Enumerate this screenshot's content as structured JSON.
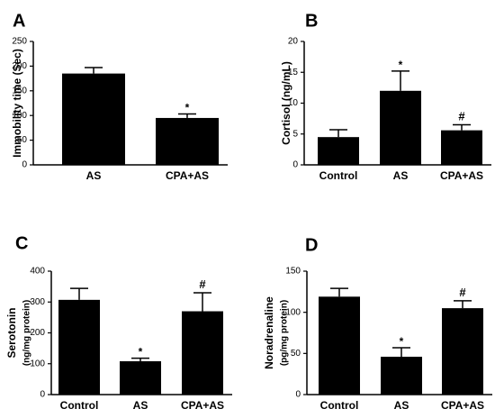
{
  "chart_data": [
    {
      "type": "bar",
      "panel_label": "A",
      "ylabel": "Immobility time (Sec)",
      "categories": [
        "AS",
        "CPA+AS"
      ],
      "values": [
        185,
        95
      ],
      "errors": [
        12,
        8
      ],
      "annotations": [
        "",
        "*"
      ],
      "ylim": [
        0,
        250
      ],
      "yticks": [
        0,
        50,
        100,
        150,
        200,
        250
      ],
      "ytick_labels": [
        "0",
        "50",
        "100",
        "150",
        "200",
        "250"
      ],
      "bar_color": "#000000"
    },
    {
      "type": "bar",
      "panel_label": "B",
      "ylabel": "Cortisol (ng/mL)",
      "categories": [
        "Control",
        "AS",
        "CPA+AS"
      ],
      "values": [
        4.5,
        12.0,
        5.6
      ],
      "errors": [
        1.2,
        3.2,
        0.9
      ],
      "annotations": [
        "",
        "*",
        "#"
      ],
      "ylim": [
        0,
        20
      ],
      "yticks": [
        0,
        5,
        10,
        15,
        20
      ],
      "ytick_labels": [
        "0",
        "5",
        "10",
        "15",
        "20"
      ],
      "bar_color": "#000000"
    },
    {
      "type": "bar",
      "panel_label": "C",
      "ylabel": "Serotonin",
      "ylabel2": "(ng/mg protein)",
      "categories": [
        "Control",
        "AS",
        "CPA+AS"
      ],
      "values": [
        307,
        108,
        270
      ],
      "errors": [
        37,
        10,
        60
      ],
      "annotations": [
        "",
        "*",
        "#"
      ],
      "ylim": [
        0,
        400
      ],
      "yticks": [
        0,
        100,
        200,
        300,
        400
      ],
      "ytick_labels": [
        "0",
        "100",
        "200",
        "300",
        "400"
      ],
      "bar_color": "#000000"
    },
    {
      "type": "bar",
      "panel_label": "D",
      "ylabel": "Noradrenaline",
      "ylabel2": "(pg/mg protein)",
      "categories": [
        "Control",
        "AS",
        "CPA+AS"
      ],
      "values": [
        119,
        46,
        105
      ],
      "errors": [
        10,
        11,
        9
      ],
      "annotations": [
        "",
        "*",
        "#"
      ],
      "ylim": [
        0,
        150
      ],
      "yticks": [
        0,
        50,
        100,
        150
      ],
      "ytick_labels": [
        "0",
        "50",
        "100",
        "150"
      ],
      "bar_color": "#000000"
    }
  ]
}
